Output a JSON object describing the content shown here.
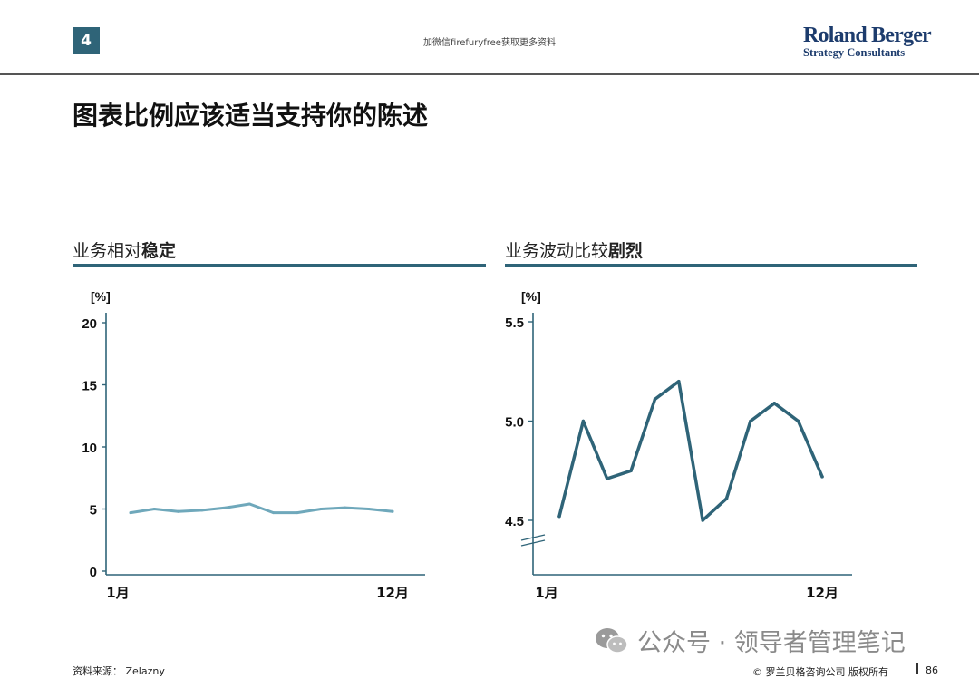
{
  "header": {
    "page_badge": "4",
    "note": "加微信firefuryfree获取更多资料",
    "brand_name": "Roland Berger",
    "brand_sub": "Strategy Consultants"
  },
  "slide_title": "图表比例应该适当支持你的陈述",
  "chart_data": [
    {
      "type": "line",
      "title_plain": "业务相对",
      "title_bold": "稳定",
      "ylabel": "[%]",
      "ylim": [
        0,
        20
      ],
      "yticks": [
        "20",
        "15",
        "10",
        "5",
        "0"
      ],
      "x_tick_labels": [
        "1月",
        "12月"
      ],
      "color": "#6fa8bb",
      "values": [
        4.7,
        5.0,
        4.8,
        4.9,
        5.1,
        5.4,
        4.7,
        4.7,
        5.0,
        5.1,
        5.0,
        4.8
      ]
    },
    {
      "type": "line",
      "title_plain": "业务波动比较",
      "title_bold": "剧烈",
      "ylabel": "[%]",
      "ylim": [
        4.5,
        5.5
      ],
      "y_axis_break": true,
      "yticks": [
        "5.5",
        "5.0",
        "4.5"
      ],
      "x_tick_labels": [
        "1月",
        "12月"
      ],
      "color": "#2f6478",
      "values": [
        4.52,
        5.0,
        4.71,
        4.75,
        5.11,
        5.2,
        4.5,
        4.61,
        5.0,
        5.09,
        5.0,
        4.72
      ]
    }
  ],
  "footer": {
    "source": "资料来源： Zelazny",
    "watermark": "公众号 · 领导者管理笔记",
    "copyright": "© 罗兰贝格咨询公司 版权所有",
    "page_number": "86"
  }
}
